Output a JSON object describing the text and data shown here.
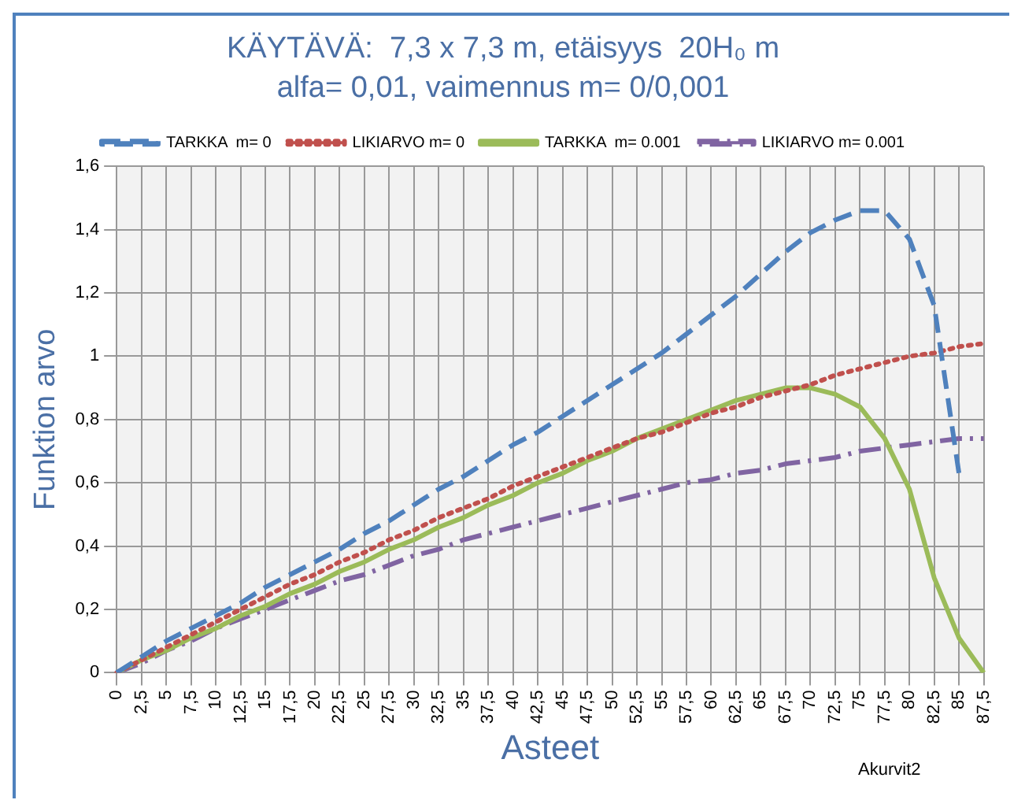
{
  "chart_data": {
    "type": "line",
    "title": "KÄYTÄVÄ:  7,3 x 7,3 m, etäisyys  20H₀ m",
    "subtitle": "alfa= 0,01, vaimennus m= 0/0,001",
    "xlabel": "Asteet",
    "ylabel": "Funktion arvo",
    "categories": [
      "0",
      "2,5",
      "5",
      "7,5",
      "10",
      "12,5",
      "15",
      "17,5",
      "20",
      "22,5",
      "25",
      "27,5",
      "30",
      "32,5",
      "35",
      "37,5",
      "40",
      "42,5",
      "45",
      "47,5",
      "50",
      "52,5",
      "55",
      "57,5",
      "60",
      "62,5",
      "65",
      "67,5",
      "70",
      "72,5",
      "75",
      "77,5",
      "80",
      "82,5",
      "85",
      "87,5"
    ],
    "series": [
      {
        "name": "TARKKA  m= 0",
        "color": "#4f81bd",
        "line_style": "dashed",
        "values": [
          0,
          0.05,
          0.1,
          0.14,
          0.18,
          0.22,
          0.27,
          0.31,
          0.35,
          0.39,
          0.44,
          0.48,
          0.53,
          0.58,
          0.62,
          0.67,
          0.72,
          0.76,
          0.81,
          0.86,
          0.91,
          0.96,
          1.01,
          1.07,
          1.13,
          1.19,
          1.26,
          1.33,
          1.39,
          1.43,
          1.46,
          1.46,
          1.37,
          1.16,
          0.63,
          null
        ]
      },
      {
        "name": "LIKIARVO m= 0",
        "color": "#c0504d",
        "line_style": "dotted",
        "values": [
          0,
          0.04,
          0.08,
          0.12,
          0.16,
          0.2,
          0.24,
          0.28,
          0.31,
          0.35,
          0.38,
          0.42,
          0.45,
          0.49,
          0.52,
          0.55,
          0.59,
          0.62,
          0.65,
          0.68,
          0.71,
          0.74,
          0.76,
          0.79,
          0.82,
          0.84,
          0.87,
          0.89,
          0.91,
          0.94,
          0.96,
          0.98,
          1.0,
          1.01,
          1.03,
          1.04
        ]
      },
      {
        "name": "TARKKA  m= 0.001",
        "color": "#9bbb59",
        "line_style": "solid",
        "values": [
          0,
          0.04,
          0.07,
          0.11,
          0.14,
          0.18,
          0.21,
          0.25,
          0.28,
          0.32,
          0.35,
          0.39,
          0.42,
          0.46,
          0.49,
          0.53,
          0.56,
          0.6,
          0.63,
          0.67,
          0.7,
          0.74,
          0.77,
          0.8,
          0.83,
          0.86,
          0.88,
          0.9,
          0.9,
          0.88,
          0.84,
          0.74,
          0.58,
          0.3,
          0.11,
          0
        ]
      },
      {
        "name": "LIKIARVO m= 0.001",
        "color": "#8064a2",
        "line_style": "dashdot",
        "values": [
          0,
          0.03,
          0.07,
          0.1,
          0.14,
          0.17,
          0.2,
          0.23,
          0.26,
          0.29,
          0.31,
          0.34,
          0.37,
          0.39,
          0.42,
          0.44,
          0.46,
          0.48,
          0.5,
          0.52,
          0.54,
          0.56,
          0.58,
          0.6,
          0.61,
          0.63,
          0.64,
          0.66,
          0.67,
          0.68,
          0.7,
          0.71,
          0.72,
          0.73,
          0.74,
          0.74
        ]
      }
    ],
    "ylim": [
      0,
      1.6
    ],
    "yticks": [
      0,
      {
        "value": 0.2,
        "label": "0,2"
      },
      {
        "value": 0.4,
        "label": "0,4"
      },
      {
        "value": 0.6,
        "label": "0,6"
      },
      {
        "value": 0.8,
        "label": "0,8"
      },
      1,
      {
        "value": 1.2,
        "label": "1,2"
      },
      {
        "value": 1.4,
        "label": "1,4"
      },
      {
        "value": 1.6,
        "label": "1,6"
      }
    ],
    "grid": true,
    "legend": "top",
    "marker": "none",
    "annotations": [
      "Akurvit2"
    ]
  }
}
